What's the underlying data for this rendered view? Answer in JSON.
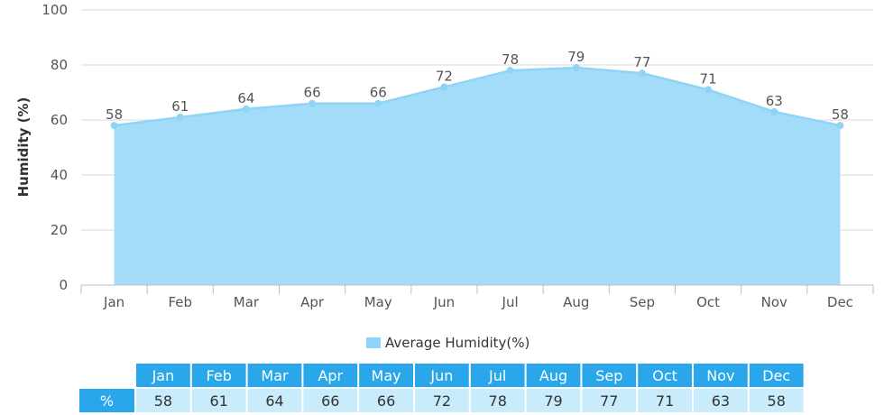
{
  "chart_data": {
    "type": "area",
    "categories": [
      "Jan",
      "Feb",
      "Mar",
      "Apr",
      "May",
      "Jun",
      "Jul",
      "Aug",
      "Sep",
      "Oct",
      "Nov",
      "Dec"
    ],
    "series": [
      {
        "name": "Average Humidity(%)",
        "values": [
          58,
          61,
          64,
          66,
          66,
          72,
          78,
          79,
          77,
          71,
          63,
          58
        ]
      }
    ],
    "ylabel": "Humidity (%)",
    "ylim": [
      0,
      100
    ],
    "yticks": [
      0,
      20,
      40,
      60,
      80,
      100
    ],
    "grid": true,
    "legend_position": "bottom-center",
    "data_labels": true
  },
  "table": {
    "row_label": "%"
  },
  "colors": {
    "area_fill": "#a3dcf8",
    "line": "#8fd3f6",
    "marker": "#8fd3f6",
    "gridline": "#d9d9d9",
    "legend_swatch": "#8fd3f6",
    "table_header": "#2aa7ea",
    "table_values": "#c8ecfc"
  }
}
